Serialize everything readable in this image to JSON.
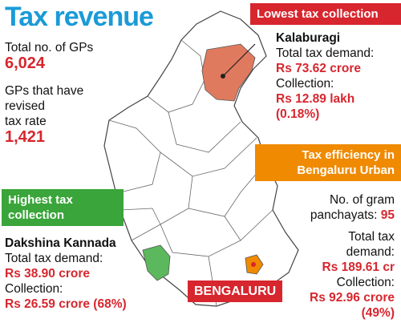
{
  "title": "Tax revenue",
  "stats": {
    "total_gps_label": "Total no. of GPs",
    "total_gps": "6,024",
    "revised_label": [
      "GPs that have",
      "revised",
      "tax rate"
    ],
    "revised": "1,421"
  },
  "lowest": {
    "header": "Lowest tax collection",
    "district": "Kalaburagi",
    "demand_label": "Total tax demand:",
    "demand": "Rs 73.62 crore",
    "collection_label": "Collection:",
    "collection": "Rs 12.89 lakh",
    "share": "(0.18%)"
  },
  "efficiency": {
    "header": [
      "Tax efficiency in",
      "Bengaluru Urban"
    ],
    "gp_label": [
      "No. of gram",
      "panchayats:"
    ],
    "gp_value": "95",
    "demand_label": [
      "Total tax",
      "demand:"
    ],
    "demand": "Rs 189.61 cr",
    "collection_label": "Collection:",
    "collection": "Rs 92.96 crore",
    "share": "(49%)"
  },
  "highest": {
    "header": [
      "Highest tax",
      "collection"
    ],
    "district": "Dakshina Kannada",
    "demand_label": "Total tax demand:",
    "demand": "Rs 38.90 crore",
    "collection_label": "Collection:",
    "collection": "Rs 26.59 crore (68%)"
  },
  "map_label": "BENGALURU"
}
